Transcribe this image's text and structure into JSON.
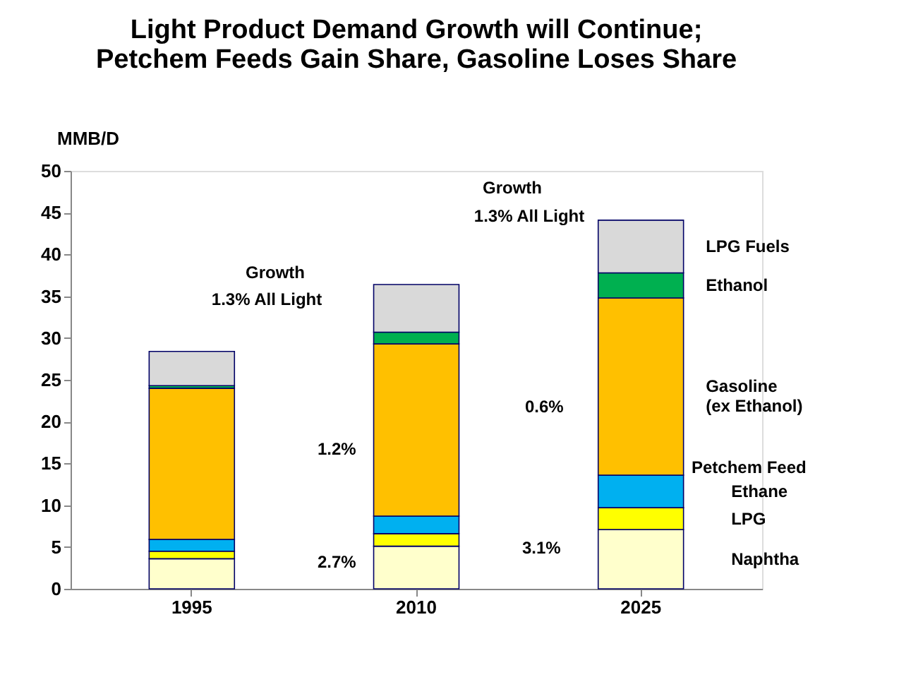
{
  "chart_data": {
    "type": "bar",
    "stacked": true,
    "title": "Light Product Demand Growth will Continue;\nPetchem Feeds Gain Share, Gasoline Loses Share",
    "ylabel": "MMB/D",
    "categories": [
      "1995",
      "2010",
      "2025"
    ],
    "series": [
      {
        "name": "Naphtha",
        "color": "#ffffcc",
        "values": [
          3.6,
          5.1,
          7.1
        ]
      },
      {
        "name": "LPG",
        "color": "#ffff00",
        "values": [
          0.9,
          1.5,
          2.6
        ]
      },
      {
        "name": "Ethane",
        "color": "#00b0f0",
        "values": [
          1.4,
          2.1,
          3.9
        ]
      },
      {
        "name": "Gasoline\n(ex Ethanol)",
        "color": "#ffc000",
        "values": [
          18.1,
          20.6,
          21.2
        ]
      },
      {
        "name": "Ethanol",
        "color": "#00b050",
        "values": [
          0.3,
          1.4,
          3.0
        ]
      },
      {
        "name": "LPG Fuels",
        "color": "#d9d9d9",
        "values": [
          4.1,
          5.7,
          6.3
        ]
      }
    ],
    "ylim": [
      0,
      50
    ],
    "yticks": [
      0,
      5,
      10,
      15,
      20,
      25,
      30,
      35,
      40,
      45,
      50
    ],
    "grid": false,
    "legend": false,
    "annotations": [
      "Growth",
      "1.3% All Light",
      "Growth",
      "1.3% All Light",
      "1.2%",
      "2.7%",
      "0.6%",
      "3.1%",
      "Petchem Feed"
    ]
  }
}
